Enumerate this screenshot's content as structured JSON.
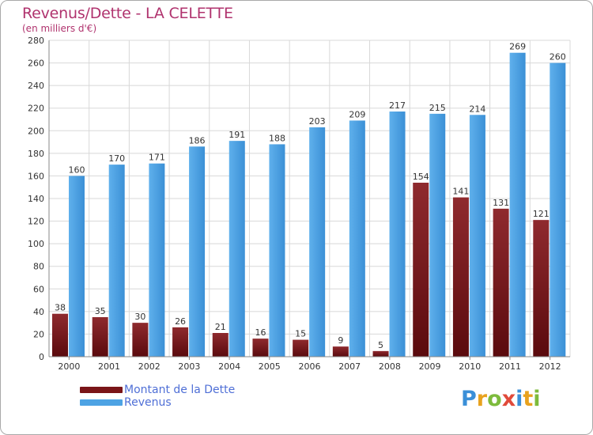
{
  "header": {
    "title": "Revenus/Dette - LA CELETTE",
    "subtitle": "(en milliers d'€)"
  },
  "legend": {
    "items": [
      {
        "label": "Montant de la Dette",
        "color": "#7a1518"
      },
      {
        "label": "Revenus",
        "color": "#4da3e4"
      }
    ]
  },
  "logo": {
    "text": "Proxiti",
    "letters": [
      {
        "ch": "P",
        "color": "#3a8fd8"
      },
      {
        "ch": "r",
        "color": "#e8a21e"
      },
      {
        "ch": "o",
        "color": "#7dbb3c"
      },
      {
        "ch": "x",
        "color": "#e04a3a"
      },
      {
        "ch": "i",
        "color": "#3a8fd8"
      },
      {
        "ch": "t",
        "color": "#e8a21e"
      },
      {
        "ch": "i",
        "color": "#7dbb3c"
      }
    ]
  },
  "chart_data": {
    "type": "bar",
    "title": "Revenus/Dette - LA CELETTE",
    "subtitle": "(en milliers d'€)",
    "categories": [
      "2000",
      "2001",
      "2002",
      "2003",
      "2004",
      "2005",
      "2006",
      "2007",
      "2008",
      "2009",
      "2010",
      "2011",
      "2012"
    ],
    "series": [
      {
        "name": "Montant de la Dette",
        "color": "#7a1518",
        "values": [
          38,
          35,
          30,
          26,
          21,
          16,
          15,
          9,
          5,
          154,
          141,
          131,
          121
        ]
      },
      {
        "name": "Revenus",
        "color": "#4da3e4",
        "values": [
          160,
          170,
          171,
          186,
          191,
          188,
          203,
          209,
          217,
          215,
          214,
          269,
          260
        ]
      }
    ],
    "ylim": [
      0,
      280
    ],
    "yticks": [
      0,
      20,
      40,
      60,
      80,
      100,
      120,
      140,
      160,
      180,
      200,
      220,
      240,
      260,
      280
    ],
    "grid": true,
    "legend_position": "bottom-left"
  }
}
